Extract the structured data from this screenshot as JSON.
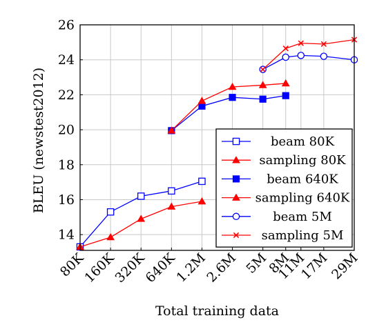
{
  "chart_data": {
    "type": "line",
    "xlabel": "Total training data",
    "ylabel": "BLEU (newstest2012)",
    "x_tick_labels": [
      "80K",
      "160K",
      "320K",
      "640K",
      "1.2M",
      "2.6M",
      "5M",
      "8M",
      "11M",
      "17M",
      "29M"
    ],
    "x_tick_positions": [
      0,
      1,
      2,
      3,
      4,
      5,
      6,
      6.75,
      7.25,
      8,
      9
    ],
    "xlim": [
      0,
      9
    ],
    "y_ticks": [
      14,
      16,
      18,
      20,
      22,
      24,
      26
    ],
    "ylim": [
      13.1,
      26
    ],
    "grid": true,
    "legend_position": "bottom-right",
    "series": [
      {
        "name": "beam 80K",
        "color": "#0000ff",
        "marker": "square-open",
        "x": [
          "80K",
          "160K",
          "320K",
          "640K",
          "1.2M"
        ],
        "values": [
          13.3,
          15.3,
          16.2,
          16.5,
          17.05
        ]
      },
      {
        "name": "sampling 80K",
        "color": "#ff0000",
        "marker": "triangle",
        "x": [
          "80K",
          "160K",
          "320K",
          "640K",
          "1.2M"
        ],
        "values": [
          13.3,
          13.85,
          14.9,
          15.6,
          15.9
        ]
      },
      {
        "name": "beam 640K",
        "color": "#0000ff",
        "marker": "square-filled",
        "x": [
          "640K",
          "1.2M",
          "2.6M",
          "5M",
          "8M"
        ],
        "values": [
          19.95,
          21.35,
          21.85,
          21.75,
          21.95
        ]
      },
      {
        "name": "sampling 640K",
        "color": "#ff0000",
        "marker": "triangle",
        "x": [
          "640K",
          "1.2M",
          "2.6M",
          "5M",
          "8M"
        ],
        "values": [
          19.95,
          21.65,
          22.45,
          22.55,
          22.65
        ]
      },
      {
        "name": "beam 5M",
        "color": "#0000ff",
        "marker": "circle-open",
        "x": [
          "5M",
          "8M",
          "11M",
          "17M",
          "29M"
        ],
        "values": [
          23.45,
          24.15,
          24.25,
          24.2,
          24.0
        ]
      },
      {
        "name": "sampling 5M",
        "color": "#ff0000",
        "marker": "cross",
        "x": [
          "5M",
          "8M",
          "11M",
          "17M",
          "29M"
        ],
        "values": [
          23.45,
          24.65,
          24.95,
          24.9,
          25.15
        ]
      }
    ]
  }
}
